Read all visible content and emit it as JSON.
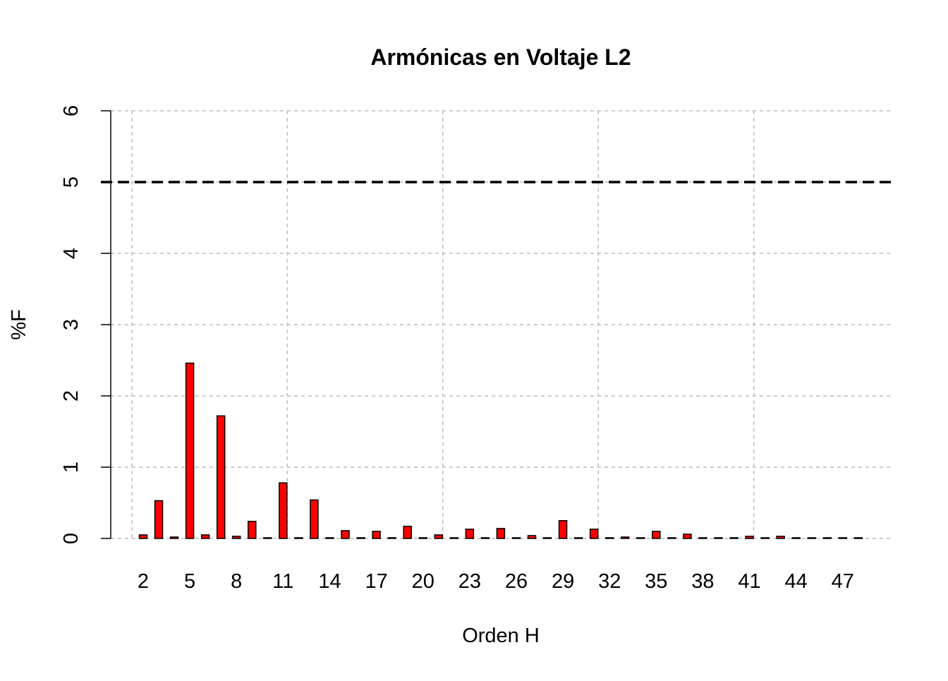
{
  "chart_data": {
    "type": "bar",
    "title": "Armónicas en Voltaje L2",
    "x_label": "Orden H",
    "y_label": "%F",
    "categories": [
      2,
      null,
      null,
      5,
      null,
      null,
      8,
      null,
      null,
      11,
      null,
      null,
      14,
      null,
      null,
      17,
      null,
      null,
      20,
      null,
      null,
      23,
      null,
      null,
      26,
      null,
      null,
      29,
      null,
      null,
      32,
      null,
      null,
      35,
      null,
      null,
      38,
      null,
      null,
      41,
      null,
      null,
      44,
      null,
      null,
      47,
      null
    ],
    "values": [
      0.05,
      0.53,
      0.02,
      2.46,
      0.05,
      1.72,
      0.03,
      0.24,
      0.01,
      0.78,
      0.01,
      0.54,
      0.01,
      0.11,
      0.01,
      0.1,
      0.01,
      0.17,
      0.01,
      0.05,
      0.01,
      0.13,
      0.01,
      0.14,
      0.01,
      0.04,
      0.01,
      0.25,
      0.01,
      0.13,
      0.01,
      0.02,
      0.01,
      0.1,
      0.01,
      0.06,
      0.01,
      0.01,
      0.01,
      0.03,
      0.01,
      0.03,
      0.01,
      0.01,
      0.01,
      0.01,
      0.01
    ],
    "color": "#ff0000",
    "ylim": [
      0,
      6
    ],
    "yticks": [
      0,
      1,
      2,
      3,
      4,
      5,
      6
    ],
    "grid": true,
    "hline": 5
  }
}
